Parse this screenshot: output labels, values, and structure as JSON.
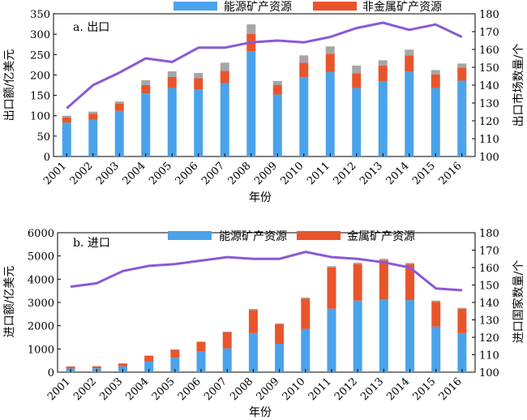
{
  "colors": {
    "energy": "#4aa3ea",
    "nonmetal": "#e8552b",
    "other": "#a6a6a6",
    "line": "#8a59d6"
  },
  "chart_data": [
    {
      "type": "bar",
      "panel_label": "a. 出口",
      "categories": [
        "2001",
        "2002",
        "2003",
        "2004",
        "2005",
        "2006",
        "2007",
        "2008",
        "2009",
        "2010",
        "2011",
        "2012",
        "2013",
        "2014",
        "2015",
        "2016"
      ],
      "xlabel": "年份",
      "ylabel": "出口额/亿美元",
      "y2label": "出口市场数量/个",
      "ylim": [
        0,
        350
      ],
      "y2lim": [
        100,
        180
      ],
      "yticks": [
        "0",
        "50",
        "100",
        "150",
        "200",
        "250",
        "300",
        "350"
      ],
      "y2ticks": [
        "100",
        "110",
        "120",
        "130",
        "140",
        "150",
        "160",
        "170",
        "180"
      ],
      "legend": [
        "能源矿产资源",
        "非金属矿产资源"
      ],
      "stacked": true,
      "series": [
        {
          "name": "能源矿产资源",
          "color_key": "energy",
          "values": [
            83,
            90,
            112,
            155,
            168,
            165,
            180,
            258,
            152,
            195,
            207,
            168,
            185,
            208,
            168,
            186
          ]
        },
        {
          "name": "非金属矿产资源",
          "color_key": "nonmetal",
          "values": [
            13,
            15,
            18,
            20,
            27,
            27,
            30,
            43,
            23,
            35,
            45,
            36,
            38,
            40,
            33,
            32
          ]
        },
        {
          "color_key": "other",
          "values": [
            4,
            5,
            5,
            12,
            14,
            13,
            20,
            23,
            10,
            18,
            18,
            19,
            13,
            14,
            11,
            10
          ]
        }
      ],
      "line": {
        "axis": "right",
        "values": [
          127,
          140,
          147,
          155,
          153,
          161,
          161,
          164,
          165,
          164,
          167,
          172,
          175,
          171,
          174,
          167
        ]
      }
    },
    {
      "type": "bar",
      "panel_label": "b. 进口",
      "categories": [
        "2001",
        "2002",
        "2003",
        "2004",
        "2005",
        "2006",
        "2007",
        "2008",
        "2009",
        "2010",
        "2011",
        "2012",
        "2013",
        "2014",
        "2015",
        "2016"
      ],
      "xlabel": "年份",
      "ylabel": "进口额/亿美元",
      "y2label": "进口国家数量/个",
      "ylim": [
        0,
        6000
      ],
      "y2lim": [
        100,
        180
      ],
      "yticks": [
        "0",
        "1000",
        "2000",
        "3000",
        "4000",
        "5000",
        "6000"
      ],
      "y2ticks": [
        "100",
        "110",
        "120",
        "130",
        "140",
        "150",
        "160",
        "170",
        "180"
      ],
      "legend": [
        "能源矿产资源",
        "金属矿产资源"
      ],
      "stacked": true,
      "series": [
        {
          "name": "能源矿产资源",
          "color_key": "energy",
          "values": [
            160,
            165,
            250,
            450,
            620,
            880,
            1020,
            1680,
            1220,
            1860,
            2730,
            3080,
            3110,
            3100,
            1960,
            1680
          ]
        },
        {
          "name": "金属矿产资源",
          "color_key": "nonmetal",
          "values": [
            80,
            85,
            120,
            250,
            340,
            420,
            700,
            990,
            840,
            1300,
            1770,
            1570,
            1710,
            1540,
            1070,
            1050
          ]
        },
        {
          "color_key": "other",
          "values": [
            10,
            10,
            10,
            20,
            20,
            20,
            30,
            50,
            40,
            50,
            60,
            60,
            60,
            60,
            50,
            40
          ]
        }
      ],
      "line": {
        "axis": "right",
        "values": [
          149,
          151,
          158,
          161,
          162,
          164,
          166,
          165,
          165,
          169,
          166,
          165,
          163,
          160,
          148,
          147
        ]
      }
    }
  ]
}
